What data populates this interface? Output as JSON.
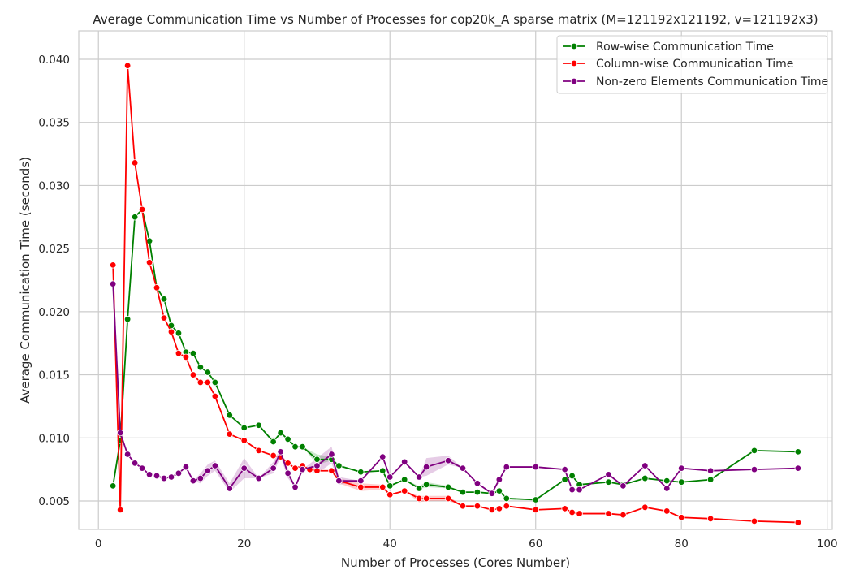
{
  "chart_data": {
    "type": "line",
    "title": "Average Communication Time vs Number of Processes for cop20k_A sparse matrix (M=121192x121192, v=121192x3)",
    "xlabel": "Number of Processes (Cores Number)",
    "ylabel": "Average Communication Time (seconds)",
    "xlim": [
      -2.7,
      100.7
    ],
    "ylim": [
      0.00275,
      0.04225
    ],
    "x_ticks": [
      0,
      20,
      40,
      60,
      80,
      100
    ],
    "y_ticks": [
      0.005,
      0.01,
      0.015,
      0.02,
      0.025,
      0.03,
      0.035,
      0.04
    ],
    "x_tick_labels": [
      "0",
      "20",
      "40",
      "60",
      "80",
      "100"
    ],
    "y_tick_labels": [
      "0.005",
      "0.010",
      "0.015",
      "0.020",
      "0.025",
      "0.030",
      "0.035",
      "0.040"
    ],
    "grid": true,
    "legend_position": "top-right",
    "series": [
      {
        "name": "Row-wise Communication Time",
        "color": "#008000",
        "marker": "circle",
        "points": [
          [
            2,
            0.0062
          ],
          [
            3,
            0.0098
          ],
          [
            4,
            0.0194
          ],
          [
            5,
            0.0275
          ],
          [
            6,
            0.0281
          ],
          [
            7,
            0.0256
          ],
          [
            8,
            0.0219
          ],
          [
            9,
            0.021
          ],
          [
            10,
            0.0189
          ],
          [
            11,
            0.0183
          ],
          [
            12,
            0.0168
          ],
          [
            13,
            0.0167
          ],
          [
            14,
            0.0156
          ],
          [
            15,
            0.0152
          ],
          [
            16,
            0.0144
          ],
          [
            18,
            0.0118
          ],
          [
            20,
            0.0108
          ],
          [
            22,
            0.011
          ],
          [
            24,
            0.0097
          ],
          [
            25,
            0.0104
          ],
          [
            26,
            0.0099
          ],
          [
            27,
            0.0093
          ],
          [
            28,
            0.0093
          ],
          [
            30,
            0.0083
          ],
          [
            32,
            0.0083
          ],
          [
            33,
            0.0078
          ],
          [
            36,
            0.0073
          ],
          [
            39,
            0.0074
          ],
          [
            40,
            0.0062
          ],
          [
            42,
            0.0067
          ],
          [
            44,
            0.006
          ],
          [
            45,
            0.0063
          ],
          [
            48,
            0.0061
          ],
          [
            50,
            0.0057
          ],
          [
            52,
            0.0057
          ],
          [
            54,
            0.0056
          ],
          [
            55,
            0.0058
          ],
          [
            56,
            0.0052
          ],
          [
            60,
            0.0051
          ],
          [
            64,
            0.0067
          ],
          [
            65,
            0.007
          ],
          [
            66,
            0.0063
          ],
          [
            70,
            0.0065
          ],
          [
            72,
            0.0063
          ],
          [
            75,
            0.0068
          ],
          [
            78,
            0.0066
          ],
          [
            80,
            0.0065
          ],
          [
            84,
            0.0067
          ],
          [
            90,
            0.009
          ],
          [
            96,
            0.0089
          ]
        ],
        "band": [
          [
            30,
            0.0079,
            0.0087
          ],
          [
            32,
            0.0082,
            0.0085
          ],
          [
            44,
            0.0059,
            0.0062
          ],
          [
            45,
            0.0061,
            0.0065
          ],
          [
            48,
            0.006,
            0.0062
          ]
        ]
      },
      {
        "name": "Column-wise Communication Time",
        "color": "#ff0000",
        "marker": "circle",
        "points": [
          [
            2,
            0.0237
          ],
          [
            3,
            0.0043
          ],
          [
            4,
            0.0395
          ],
          [
            5,
            0.0318
          ],
          [
            6,
            0.0281
          ],
          [
            7,
            0.0239
          ],
          [
            8,
            0.0219
          ],
          [
            9,
            0.0195
          ],
          [
            10,
            0.0184
          ],
          [
            11,
            0.0167
          ],
          [
            12,
            0.0164
          ],
          [
            13,
            0.015
          ],
          [
            14,
            0.0144
          ],
          [
            15,
            0.0144
          ],
          [
            16,
            0.0133
          ],
          [
            18,
            0.0103
          ],
          [
            20,
            0.0098
          ],
          [
            22,
            0.009
          ],
          [
            24,
            0.0086
          ],
          [
            25,
            0.0085
          ],
          [
            26,
            0.008
          ],
          [
            27,
            0.0076
          ],
          [
            28,
            0.0078
          ],
          [
            29,
            0.0075
          ],
          [
            30,
            0.0074
          ],
          [
            32,
            0.0074
          ],
          [
            33,
            0.0066
          ],
          [
            36,
            0.0061
          ],
          [
            39,
            0.0061
          ],
          [
            40,
            0.0055
          ],
          [
            42,
            0.0058
          ],
          [
            44,
            0.0052
          ],
          [
            45,
            0.0052
          ],
          [
            48,
            0.0052
          ],
          [
            50,
            0.0046
          ],
          [
            52,
            0.0046
          ],
          [
            54,
            0.0043
          ],
          [
            55,
            0.0044
          ],
          [
            56,
            0.0046
          ],
          [
            60,
            0.0043
          ],
          [
            64,
            0.0044
          ],
          [
            65,
            0.0041
          ],
          [
            66,
            0.004
          ],
          [
            70,
            0.004
          ],
          [
            72,
            0.0039
          ],
          [
            75,
            0.0045
          ],
          [
            78,
            0.0042
          ],
          [
            80,
            0.0037
          ],
          [
            84,
            0.0036
          ],
          [
            90,
            0.0034
          ],
          [
            96,
            0.0033
          ]
        ],
        "band": [
          [
            33,
            0.0064,
            0.0068
          ],
          [
            36,
            0.0058,
            0.0064
          ],
          [
            39,
            0.0059,
            0.0063
          ],
          [
            44,
            0.0049,
            0.0054
          ],
          [
            45,
            0.005,
            0.0054
          ],
          [
            48,
            0.005,
            0.0054
          ]
        ]
      },
      {
        "name": "Non-zero Elements Communication Time",
        "color": "#800080",
        "marker": "circle",
        "points": [
          [
            2,
            0.0222
          ],
          [
            3,
            0.0104
          ],
          [
            4,
            0.0087
          ],
          [
            5,
            0.008
          ],
          [
            6,
            0.0076
          ],
          [
            7,
            0.0071
          ],
          [
            8,
            0.007
          ],
          [
            9,
            0.0068
          ],
          [
            10,
            0.0069
          ],
          [
            11,
            0.0072
          ],
          [
            12,
            0.0077
          ],
          [
            13,
            0.0066
          ],
          [
            14,
            0.0068
          ],
          [
            15,
            0.0074
          ],
          [
            16,
            0.0078
          ],
          [
            18,
            0.006
          ],
          [
            20,
            0.0076
          ],
          [
            22,
            0.0068
          ],
          [
            24,
            0.0076
          ],
          [
            25,
            0.0089
          ],
          [
            26,
            0.0072
          ],
          [
            27,
            0.0061
          ],
          [
            28,
            0.0075
          ],
          [
            30,
            0.0078
          ],
          [
            32,
            0.0087
          ],
          [
            33,
            0.0066
          ],
          [
            36,
            0.0066
          ],
          [
            39,
            0.0085
          ],
          [
            40,
            0.0069
          ],
          [
            42,
            0.0081
          ],
          [
            44,
            0.0069
          ],
          [
            45,
            0.0077
          ],
          [
            48,
            0.0082
          ],
          [
            50,
            0.0076
          ],
          [
            52,
            0.0064
          ],
          [
            54,
            0.0056
          ],
          [
            55,
            0.0067
          ],
          [
            56,
            0.0077
          ],
          [
            60,
            0.0077
          ],
          [
            64,
            0.0075
          ],
          [
            65,
            0.0059
          ],
          [
            66,
            0.0059
          ],
          [
            70,
            0.0071
          ],
          [
            72,
            0.0062
          ],
          [
            75,
            0.0078
          ],
          [
            78,
            0.006
          ],
          [
            80,
            0.0076
          ],
          [
            84,
            0.0074
          ],
          [
            90,
            0.0075
          ],
          [
            96,
            0.0076
          ]
        ],
        "band": [
          [
            14,
            0.0064,
            0.0072
          ],
          [
            15,
            0.007,
            0.0079
          ],
          [
            16,
            0.0074,
            0.0082
          ],
          [
            18,
            0.0057,
            0.0064
          ],
          [
            20,
            0.0068,
            0.0084
          ],
          [
            24,
            0.0072,
            0.0081
          ],
          [
            25,
            0.0085,
            0.0092
          ],
          [
            26,
            0.0068,
            0.0076
          ],
          [
            30,
            0.0072,
            0.0084
          ],
          [
            32,
            0.008,
            0.0093
          ],
          [
            33,
            0.0063,
            0.0069
          ],
          [
            45,
            0.007,
            0.0084
          ],
          [
            48,
            0.0079,
            0.0086
          ]
        ]
      }
    ]
  }
}
